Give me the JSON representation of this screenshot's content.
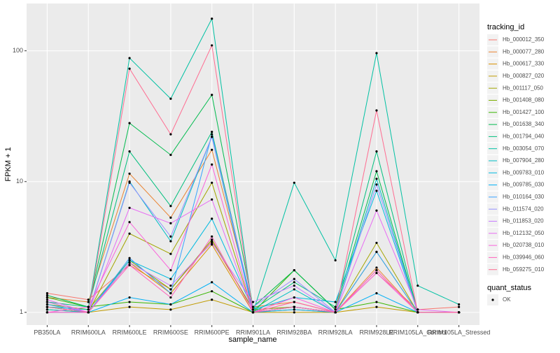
{
  "chart_data": {
    "type": "line",
    "y_label": "FPKM + 1",
    "x_label": "sample_name",
    "log_y": true,
    "grid": true,
    "categories": [
      "PB350LA",
      "RRIM600LA",
      "RRIM600LE",
      "RRIM600SE",
      "RRIM600PE",
      "RRIM901LA",
      "RRIM928BA",
      "RRIM928LA",
      "RRIM928LE",
      "RRIM105LA_Control",
      "RRIM105LA_Stressed"
    ],
    "ylim": [
      0.8,
      230
    ],
    "yticks": [
      1,
      10,
      100
    ],
    "legend_title": "tracking_id",
    "legend_position": "right",
    "point_legend_title": "quant_status",
    "point_legend_label": "OK",
    "point_color": "#000000",
    "series": [
      {
        "name": "Hb_000012_350",
        "color": "#F8766D",
        "values": [
          1.4,
          1.25,
          2.3,
          1.5,
          3.5,
          1.05,
          1.1,
          1.0,
          2.0,
          1.05,
          1.1
        ]
      },
      {
        "name": "Hb_000077_280",
        "color": "#EA8331",
        "values": [
          1.3,
          1.2,
          11.5,
          5.3,
          17.5,
          1.1,
          1.2,
          1.0,
          2.2,
          1.0,
          1.0
        ]
      },
      {
        "name": "Hb_000617_330",
        "color": "#D89000",
        "values": [
          1.2,
          1.0,
          2.4,
          1.4,
          3.3,
          1.0,
          1.05,
          1.0,
          2.1,
          1.0,
          1.0
        ]
      },
      {
        "name": "Hb_000827_020",
        "color": "#C09B00",
        "values": [
          1.05,
          1.0,
          1.1,
          1.05,
          1.25,
          1.0,
          1.0,
          1.0,
          1.1,
          1.0,
          1.0
        ]
      },
      {
        "name": "Hb_001117_050",
        "color": "#A3A500",
        "values": [
          1.1,
          1.0,
          4.0,
          2.8,
          9.8,
          1.0,
          1.1,
          1.0,
          3.4,
          1.0,
          1.0
        ]
      },
      {
        "name": "Hb_001408_080",
        "color": "#7CAE00",
        "values": [
          1.15,
          1.05,
          2.5,
          1.5,
          3.6,
          1.05,
          1.1,
          1.0,
          2.9,
          1.0,
          1.0
        ]
      },
      {
        "name": "Hb_001427_100",
        "color": "#39B600",
        "values": [
          1.3,
          1.1,
          1.2,
          1.15,
          1.45,
          1.0,
          2.1,
          1.05,
          1.2,
          1.0,
          1.0
        ]
      },
      {
        "name": "Hb_001638_340",
        "color": "#00BB4E",
        "values": [
          1.35,
          1.1,
          28,
          16,
          46,
          1.1,
          2.1,
          1.05,
          12,
          1.0,
          1.0
        ]
      },
      {
        "name": "Hb_001794_040",
        "color": "#00BF7D",
        "values": [
          1.2,
          1.1,
          17,
          6.5,
          24,
          1.05,
          1.7,
          1.1,
          17,
          1.0,
          1.0
        ]
      },
      {
        "name": "Hb_003054_070",
        "color": "#00C1A3",
        "values": [
          1.1,
          1.05,
          88,
          43,
          176,
          1.0,
          9.8,
          2.5,
          96,
          1.6,
          1.15
        ]
      },
      {
        "name": "Hb_007904_280",
        "color": "#00BFC4",
        "values": [
          1.05,
          1.0,
          10,
          3.5,
          22,
          1.0,
          1.5,
          1.0,
          10.5,
          1.0,
          1.0
        ]
      },
      {
        "name": "Hb_009783_010",
        "color": "#00BAE0",
        "values": [
          1.0,
          1.0,
          2.5,
          1.8,
          5.2,
          1.05,
          1.3,
          1.2,
          8.5,
          1.0,
          1.0
        ]
      },
      {
        "name": "Hb_009785_030",
        "color": "#00B0F6",
        "values": [
          1.1,
          1.0,
          1.3,
          1.15,
          1.7,
          1.0,
          1.05,
          1.0,
          1.4,
          1.0,
          1.0
        ]
      },
      {
        "name": "Hb_010164_030",
        "color": "#35A2FF",
        "values": [
          1.15,
          1.0,
          2.6,
          1.4,
          23,
          1.0,
          1.1,
          1.0,
          2.9,
          1.0,
          1.0
        ]
      },
      {
        "name": "Hb_011574_020",
        "color": "#9590FF",
        "values": [
          1.0,
          1.0,
          9.8,
          3.8,
          22,
          1.1,
          1.8,
          1.0,
          9.5,
          1.0,
          1.0
        ]
      },
      {
        "name": "Hb_011853_020",
        "color": "#C77CFF",
        "values": [
          1.2,
          1.0,
          2.4,
          1.6,
          3.4,
          1.2,
          1.6,
          1.0,
          2.1,
          1.0,
          1.0
        ]
      },
      {
        "name": "Hb_012132_050",
        "color": "#E76BF3",
        "values": [
          1.25,
          1.0,
          6.3,
          4.8,
          7.3,
          1.0,
          1.2,
          1.0,
          6.0,
          1.05,
          1.0
        ]
      },
      {
        "name": "Hb_020738_010",
        "color": "#FA62DB",
        "values": [
          1.0,
          1.1,
          4.9,
          2.1,
          13.5,
          1.0,
          1.3,
          1.0,
          2.0,
          1.0,
          1.0
        ]
      },
      {
        "name": "Hb_039946_060",
        "color": "#FF62BC",
        "values": [
          1.0,
          1.0,
          2.3,
          1.3,
          3.8,
          1.0,
          1.1,
          1.0,
          2.1,
          1.0,
          1.0
        ]
      },
      {
        "name": "Hb_059275_010",
        "color": "#FF6C91",
        "values": [
          1.1,
          1.0,
          73,
          23,
          110,
          1.0,
          1.2,
          1.0,
          35,
          1.0,
          1.0
        ]
      }
    ]
  }
}
